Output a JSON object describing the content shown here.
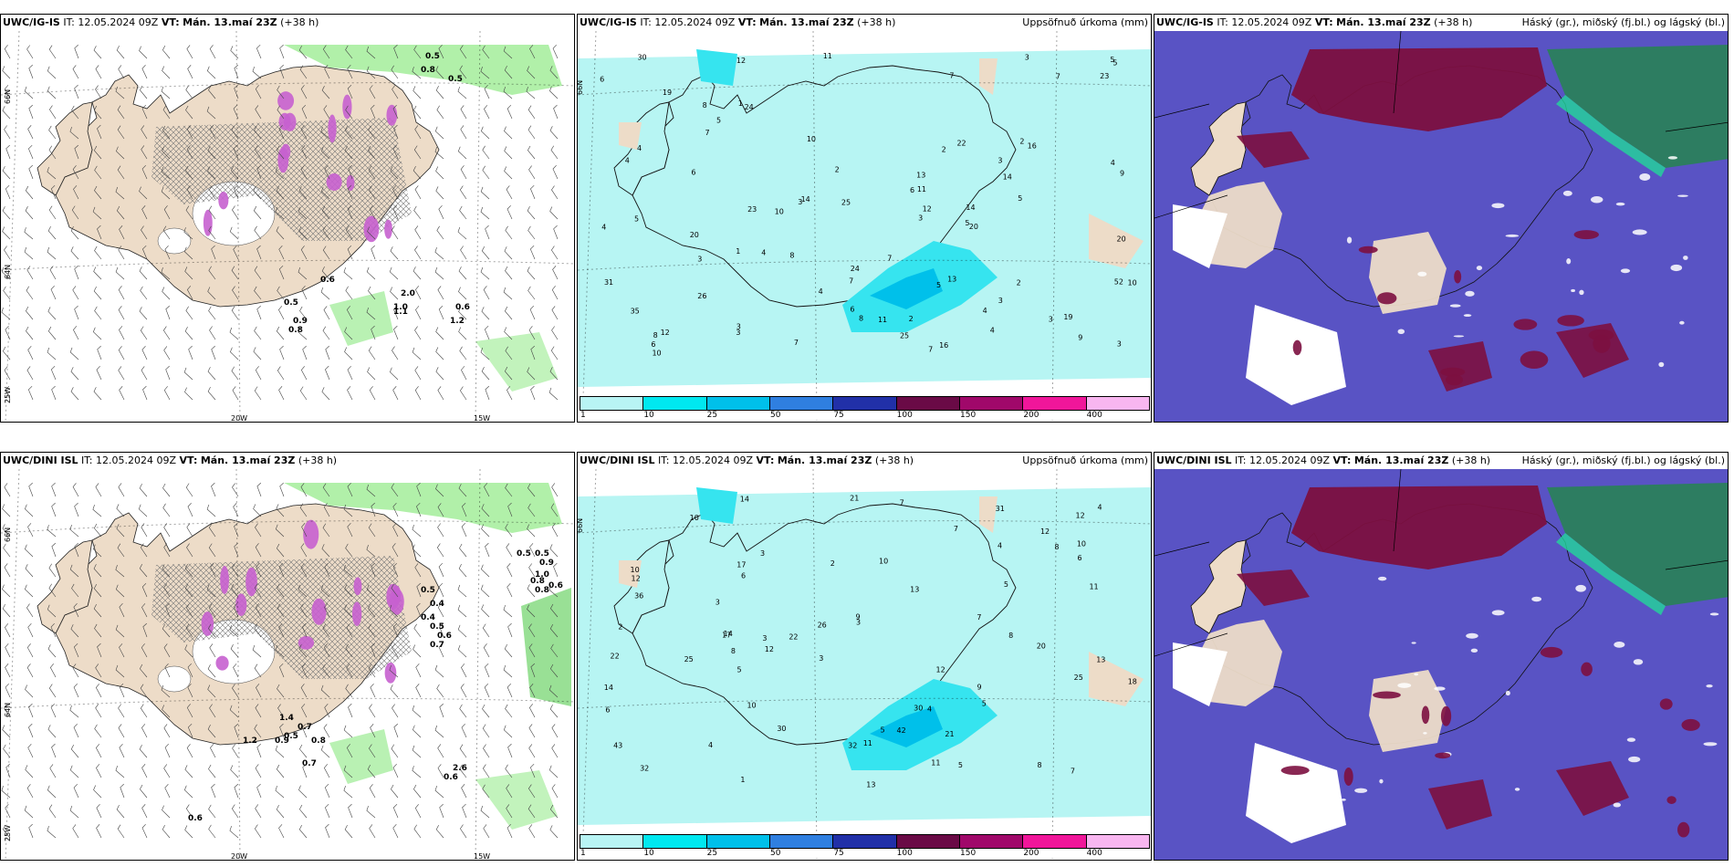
{
  "rows": [
    {
      "model": "UWC/IG-IS",
      "it_label": "IT:",
      "it_value": "12.05.2024 09Z",
      "vt_label": "VT:",
      "vt_value": "Mán. 13.maí 23Z",
      "lead": "(+38 h)",
      "panel1_labels": [
        "0.5",
        "0.8",
        "0.5",
        "0.6",
        "0.5",
        "0.9",
        "0.8",
        "1.0",
        "1.1",
        "2.0",
        "0.6",
        "1.2"
      ],
      "panel2_numbers": [
        "7",
        "7",
        "3",
        "4",
        "12",
        "19",
        "23",
        "9",
        "11",
        "10",
        "7",
        "8",
        "14",
        "7",
        "7",
        "6",
        "4",
        "3",
        "10",
        "6",
        "5",
        "5",
        "13",
        "8",
        "16",
        "20",
        "31",
        "3",
        "30",
        "20",
        "25",
        "16",
        "24",
        "23",
        "26",
        "14",
        "52",
        "35",
        "22",
        "19",
        "11",
        "14",
        "10",
        "12",
        "24",
        "13",
        "20",
        "25",
        "8",
        "6",
        "5",
        "4",
        "3",
        "2",
        "1",
        "2",
        "3",
        "2",
        "1",
        "5",
        "3",
        "4",
        "7",
        "5",
        "11",
        "6",
        "12",
        "9",
        "10",
        "2",
        "4",
        "7",
        "5",
        "6",
        "3",
        "5",
        "3",
        "4",
        "8",
        "4",
        "3",
        "2",
        "3",
        "4"
      ]
    },
    {
      "model": "UWC/DINI ISL",
      "it_label": "IT:",
      "it_value": "12.05.2024 09Z",
      "vt_label": "VT:",
      "vt_value": "Mán. 13.maí 23Z",
      "lead": "(+38 h)",
      "panel1_labels": [
        "0.5",
        "0.5",
        "0.9",
        "1.0",
        "0.8",
        "0.6",
        "0.5",
        "0.4",
        "0.4",
        "0.5",
        "0.6",
        "0.7",
        "0.8",
        "0.5",
        "0.9",
        "0.7",
        "0.8",
        "0.7",
        "0.6",
        "1.4",
        "1.2",
        "2.6",
        "0.6"
      ],
      "panel2_numbers": [
        "7",
        "3",
        "21",
        "30",
        "22",
        "12",
        "11",
        "12",
        "5",
        "4",
        "3",
        "14",
        "10",
        "17",
        "10",
        "12",
        "8",
        "11",
        "13",
        "5",
        "31",
        "25",
        "32",
        "30",
        "36",
        "42",
        "43",
        "32",
        "22",
        "25",
        "26",
        "20",
        "10",
        "17",
        "14",
        "12",
        "6",
        "7",
        "13",
        "8",
        "21",
        "9",
        "12",
        "10",
        "14",
        "18",
        "3",
        "5",
        "4",
        "2",
        "1",
        "3",
        "2",
        "7",
        "11",
        "8",
        "13",
        "9",
        "5",
        "4",
        "3",
        "6",
        "7",
        "10",
        "8",
        "6",
        "5",
        "4"
      ]
    }
  ],
  "panel2_title": "Uppsöfnuð úrkoma (mm)",
  "panel3_title": "Háský (gr.), miðský (fj.bl.) og lágský (bl.)",
  "axis_labels": {
    "lat_66": "66N",
    "lat_64": "64N",
    "lon_25": "25W",
    "lon_20": "20W",
    "lon_15": "15W"
  },
  "colorbar": {
    "ticks": [
      "1",
      "10",
      "25",
      "50",
      "75",
      "100",
      "150",
      "200",
      "400"
    ],
    "colors": [
      "#b8f4f4",
      "#00e8f0",
      "#00c0ea",
      "#2f7fe0",
      "#2130a8",
      "#6a0a46",
      "#a0086a",
      "#f0169a",
      "#f8b6f0"
    ]
  },
  "colors": {
    "land": "#eddcc8",
    "sea": "#ffffff",
    "precip_light": "#b7f5f3",
    "precip_mid": "#36e4ef",
    "cloud_low": "#5953c4",
    "cloud_mid": "#7c1040",
    "cloud_high": "#2b7f5c",
    "green_precip": "#a8eea0",
    "snow": "#c660cf"
  }
}
